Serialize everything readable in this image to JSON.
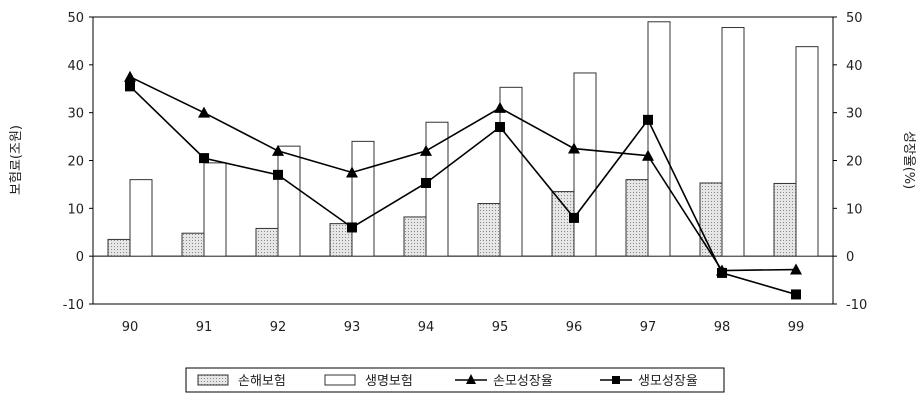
{
  "chart_data": {
    "type": "bar",
    "categories": [
      "90",
      "91",
      "92",
      "93",
      "94",
      "95",
      "96",
      "97",
      "98",
      "99"
    ],
    "series": [
      {
        "name": "손해보험",
        "kind": "bar",
        "axis": "left",
        "color": "#cfcfcf",
        "values": [
          3.5,
          4.8,
          5.8,
          6.8,
          8.2,
          11.0,
          13.5,
          16.0,
          15.3,
          15.2
        ]
      },
      {
        "name": "생명보험",
        "kind": "bar",
        "axis": "left",
        "color": "#ffffff",
        "values": [
          16.0,
          19.5,
          23.0,
          24.0,
          28.0,
          35.3,
          38.3,
          49.0,
          47.8,
          43.8
        ]
      },
      {
        "name": "손모성장율",
        "kind": "line",
        "axis": "right",
        "marker": "triangle",
        "color": "#000000",
        "values": [
          37.5,
          30.0,
          22.0,
          17.5,
          22.0,
          31.0,
          22.5,
          21.0,
          -3.0,
          -2.8
        ]
      },
      {
        "name": "생모성장율",
        "kind": "line",
        "axis": "right",
        "marker": "square",
        "color": "#000000",
        "values": [
          35.5,
          20.5,
          17.0,
          6.0,
          15.3,
          27.0,
          8.0,
          28.5,
          -3.5,
          -8.0
        ]
      }
    ],
    "ylabel": "보험료(조원)",
    "y2label": "성장율(%)",
    "ylim": [
      -10,
      50
    ],
    "y2lim": [
      -10,
      50
    ],
    "yticks": [
      "50",
      "40",
      "30",
      "20",
      "10",
      "0",
      "-10"
    ],
    "y2ticks": [
      "50",
      "40",
      "30",
      "20",
      "10",
      "0",
      "-10"
    ],
    "grid": false,
    "legend": "bottom"
  }
}
